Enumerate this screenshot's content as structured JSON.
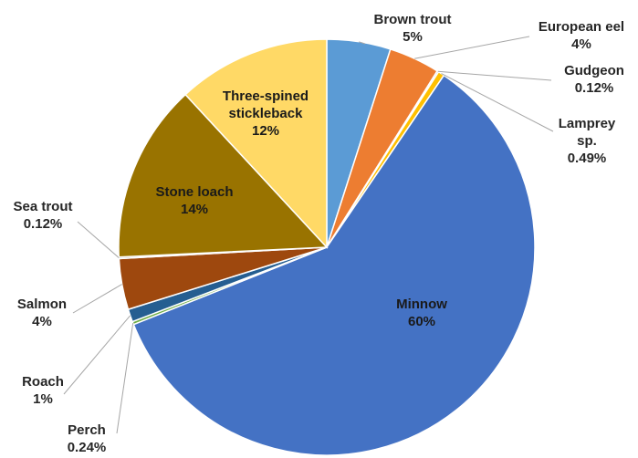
{
  "chart_data": {
    "type": "pie",
    "title": "",
    "slices": [
      {
        "name": "Brown trout",
        "pct_label": "5%",
        "value": 5.0,
        "color": "#5B9BD5"
      },
      {
        "name": "European eel",
        "pct_label": "4%",
        "value": 4.0,
        "color": "#ED7D31"
      },
      {
        "name": "Gudgeon",
        "pct_label": "0.12%",
        "value": 0.12,
        "color": "#A5A5A5"
      },
      {
        "name": "Lamprey sp.",
        "pct_label": "0.49%",
        "value": 0.49,
        "color": "#FFC000"
      },
      {
        "name": "Minnow",
        "pct_label": "60%",
        "value": 60.0,
        "color": "#4472C4"
      },
      {
        "name": "Perch",
        "pct_label": "0.24%",
        "value": 0.24,
        "color": "#70AD47"
      },
      {
        "name": "Roach",
        "pct_label": "1%",
        "value": 1.0,
        "color": "#255E91"
      },
      {
        "name": "Salmon",
        "pct_label": "4%",
        "value": 4.0,
        "color": "#9E480E"
      },
      {
        "name": "Sea trout",
        "pct_label": "0.12%",
        "value": 0.12,
        "color": "#636363"
      },
      {
        "name": "Stone loach",
        "pct_label": "14%",
        "value": 14.0,
        "color": "#997300"
      },
      {
        "name": "Three-spined stickleback",
        "pct_label": "12%",
        "value": 12.0,
        "color": "#FFD966"
      }
    ],
    "legend": "none",
    "data_labels": "category name and percentage"
  }
}
